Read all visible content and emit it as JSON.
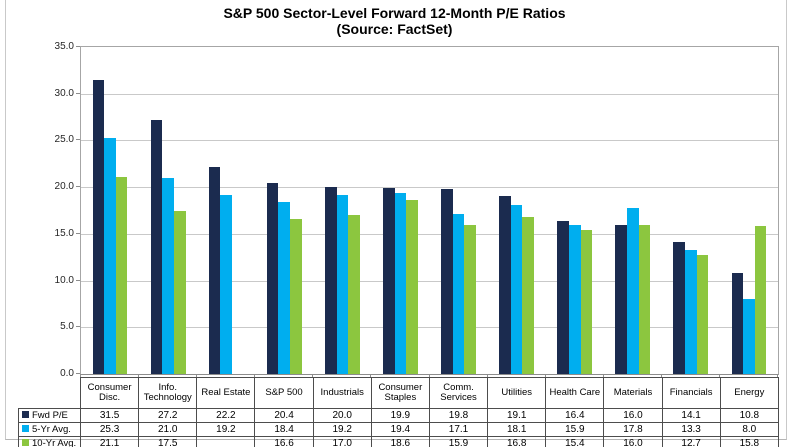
{
  "chart_data": {
    "type": "bar",
    "title": "S&P 500 Sector-Level Forward 12-Month P/E Ratios",
    "subtitle": "(Source: FactSet)",
    "categories": [
      "Consumer Disc.",
      "Info. Technology",
      "Real Estate",
      "S&P 500",
      "Industrials",
      "Consumer Staples",
      "Comm. Services",
      "Utilities",
      "Health Care",
      "Materials",
      "Financials",
      "Energy"
    ],
    "series": [
      {
        "name": "Fwd P/E",
        "color": "#1B2B4F",
        "values": [
          31.5,
          27.2,
          22.2,
          20.4,
          20.0,
          19.9,
          19.8,
          19.1,
          16.4,
          16.0,
          14.1,
          10.8
        ]
      },
      {
        "name": "5-Yr Avg.",
        "color": "#00AEEF",
        "values": [
          25.3,
          21.0,
          19.2,
          18.4,
          19.2,
          19.4,
          17.1,
          18.1,
          15.9,
          17.8,
          13.3,
          8.0
        ]
      },
      {
        "name": "10-Yr Avg.",
        "color": "#8CC63F",
        "values": [
          21.1,
          17.5,
          null,
          16.6,
          17.0,
          18.6,
          15.9,
          16.8,
          15.4,
          16.0,
          12.7,
          15.8
        ]
      }
    ],
    "ylim": [
      0,
      35
    ],
    "ytick_step": 5,
    "ytick_labels": [
      "35.0",
      "30.0",
      "25.0",
      "20.0",
      "15.0",
      "10.0",
      "5.0",
      "0.0"
    ],
    "grid": true,
    "legend_position": "table-left",
    "value_decimals": 1
  },
  "colors": {
    "gridline": "#c9c9c9",
    "plot_border": "#a6a6a6",
    "table_border": "#4d4d4d"
  }
}
